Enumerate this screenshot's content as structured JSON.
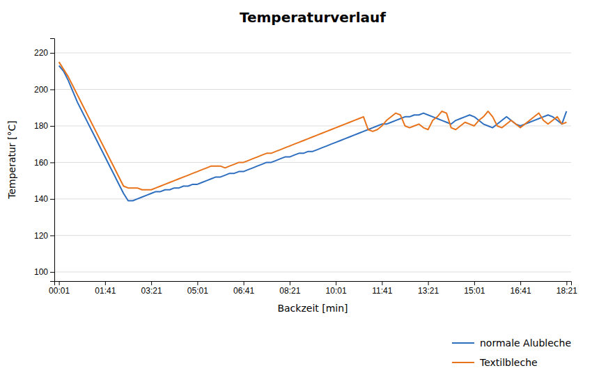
{
  "chart_data": {
    "type": "line",
    "title": "Temperaturverlauf",
    "x_label": "Backzeit [min]",
    "y_label": "Temperatur [°C]",
    "categories": [
      "00:01",
      null,
      null,
      null,
      null,
      null,
      null,
      null,
      null,
      null,
      "01:41",
      null,
      null,
      null,
      null,
      null,
      null,
      null,
      null,
      null,
      "03:21",
      null,
      null,
      null,
      null,
      null,
      null,
      null,
      null,
      null,
      "05:01",
      null,
      null,
      null,
      null,
      null,
      null,
      null,
      null,
      null,
      "06:41",
      null,
      null,
      null,
      null,
      null,
      null,
      null,
      null,
      null,
      "08:21",
      null,
      null,
      null,
      null,
      null,
      null,
      null,
      null,
      null,
      "10:01",
      null,
      null,
      null,
      null,
      null,
      null,
      null,
      null,
      null,
      "11:41",
      null,
      null,
      null,
      null,
      null,
      null,
      null,
      null,
      null,
      "13:21",
      null,
      null,
      null,
      null,
      null,
      null,
      null,
      null,
      null,
      "15:01",
      null,
      null,
      null,
      null,
      null,
      null,
      null,
      null,
      null,
      "16:41",
      null,
      null,
      null,
      null,
      null,
      null,
      null,
      null,
      null,
      "18:21"
    ],
    "series": [
      {
        "name": "normale Alubleche",
        "color": "#2E6EBF",
        "values": [
          213,
          210,
          205,
          199,
          193,
          188,
          183,
          178,
          173,
          168,
          163,
          158,
          153,
          148,
          143,
          139,
          139,
          140,
          141,
          142,
          143,
          144,
          144,
          145,
          145,
          146,
          146,
          147,
          147,
          148,
          148,
          149,
          150,
          151,
          152,
          152,
          153,
          154,
          154,
          155,
          155,
          156,
          157,
          158,
          159,
          160,
          160,
          161,
          162,
          163,
          163,
          164,
          165,
          165,
          166,
          166,
          167,
          168,
          169,
          170,
          171,
          172,
          173,
          174,
          175,
          176,
          177,
          178,
          179,
          180,
          181,
          181,
          182,
          183,
          184,
          185,
          185,
          186,
          186,
          187,
          186,
          185,
          184,
          183,
          182,
          181,
          183,
          184,
          185,
          186,
          185,
          183,
          181,
          180,
          179,
          181,
          183,
          185,
          183,
          181,
          180,
          181,
          182,
          183,
          184,
          185,
          186,
          185,
          183,
          181,
          188
        ]
      },
      {
        "name": "Textilbleche",
        "color": "#E8731A",
        "values": [
          215,
          211,
          207,
          202,
          197,
          192,
          187,
          182,
          177,
          172,
          167,
          162,
          157,
          152,
          147,
          146,
          146,
          146,
          145,
          145,
          145,
          146,
          147,
          148,
          149,
          150,
          151,
          152,
          153,
          154,
          155,
          156,
          157,
          158,
          158,
          158,
          157,
          158,
          159,
          160,
          160,
          161,
          162,
          163,
          164,
          165,
          165,
          166,
          167,
          168,
          169,
          170,
          171,
          172,
          173,
          174,
          175,
          176,
          177,
          178,
          179,
          180,
          181,
          182,
          183,
          184,
          185,
          178,
          177,
          178,
          180,
          183,
          185,
          187,
          186,
          180,
          179,
          180,
          181,
          179,
          178,
          183,
          185,
          188,
          187,
          179,
          178,
          180,
          182,
          181,
          180,
          183,
          185,
          188,
          185,
          180,
          179,
          181,
          183,
          181,
          179,
          181,
          183,
          185,
          187,
          183,
          181,
          183,
          185,
          181,
          182
        ]
      }
    ],
    "ylim": [
      95,
      228
    ],
    "yticks": [
      100,
      120,
      140,
      160,
      180,
      200,
      220
    ],
    "grid": true,
    "legend": "bottom-right"
  }
}
